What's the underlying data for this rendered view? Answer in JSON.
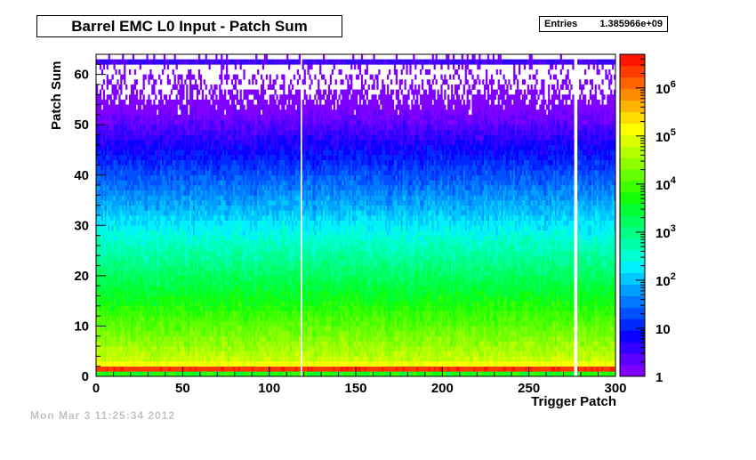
{
  "chart_data": {
    "type": "heatmap",
    "title": "Barrel EMC L0 Input - Patch Sum",
    "xlabel": "Trigger Patch",
    "ylabel": "Patch Sum",
    "xlim": [
      0,
      300
    ],
    "ylim": [
      0,
      64
    ],
    "x_ticks": [
      0,
      50,
      100,
      150,
      200,
      250,
      300
    ],
    "y_ticks": [
      0,
      10,
      20,
      30,
      40,
      50,
      60
    ],
    "z_scale": "log",
    "zlim": [
      1,
      5000000
    ],
    "z_ticks": [
      {
        "value": 1,
        "label": "1"
      },
      {
        "value": 10,
        "label": "10"
      },
      {
        "value": 100,
        "label": "10",
        "exp": "2"
      },
      {
        "value": 1000,
        "label": "10",
        "exp": "3"
      },
      {
        "value": 10000,
        "label": "10",
        "exp": "4"
      },
      {
        "value": 100000,
        "label": "10",
        "exp": "5"
      },
      {
        "value": 1000000,
        "label": "10",
        "exp": "6"
      }
    ],
    "empty_patches": [
      118,
      276,
      277
    ],
    "stats": {
      "label": "Entries",
      "value": "1.385966e+09"
    }
  },
  "footer_text": "Mon Mar 3 11:25:34 2012"
}
